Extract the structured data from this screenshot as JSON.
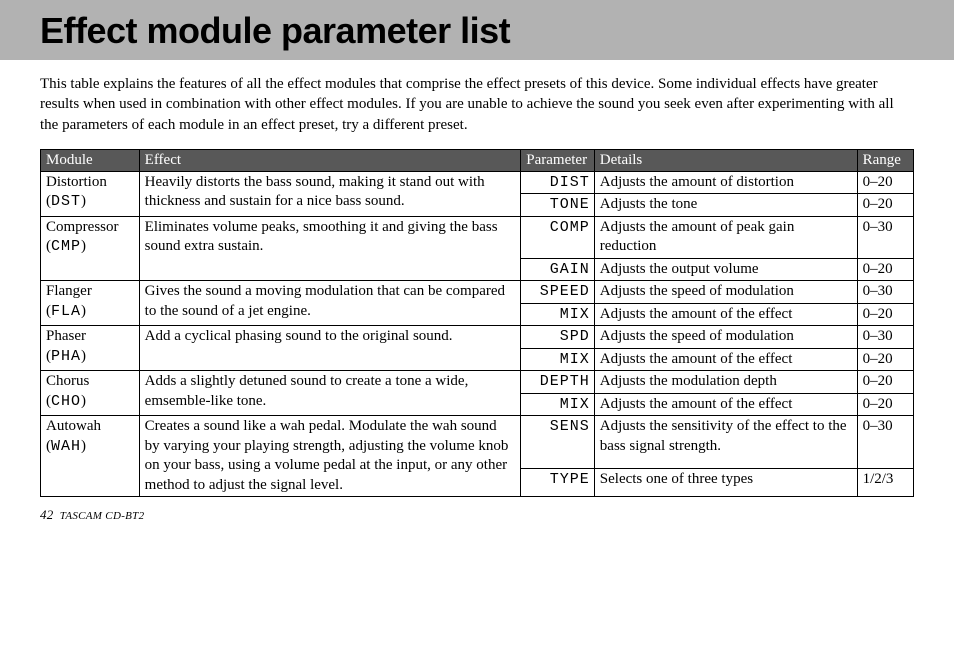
{
  "title": "Effect module parameter list",
  "intro": "This table explains the features of all the effect modules that comprise the effect presets of this device. Some individual effects have greater results when used in combination with other effect modules. If you are unable to achieve the sound you seek even after experimenting with all the parameters of each module in an effect preset, try a different preset.",
  "headers": {
    "module": "Module",
    "effect": "Effect",
    "parameter": "Parameter",
    "details": "Details",
    "range": "Range"
  },
  "rows": [
    {
      "module_name": "Distortion",
      "module_code": "DST",
      "effect": "Heavily distorts the bass sound, making it stand out with thickness and sustain for a nice bass sound.",
      "params": [
        {
          "p": "DIST",
          "d": "Adjusts the amount of distortion",
          "r": "0–20"
        },
        {
          "p": "TONE",
          "d": "Adjusts the tone",
          "r": "0–20"
        }
      ]
    },
    {
      "module_name": "Compressor",
      "module_code": "CMP",
      "effect": "Eliminates volume peaks, smoothing it and giving the bass sound extra sustain.",
      "params": [
        {
          "p": "COMP",
          "d": "Adjusts the amount of peak gain reduction",
          "r": "0–30"
        },
        {
          "p": "GAIN",
          "d": "Adjusts the output volume",
          "r": "0–20"
        }
      ]
    },
    {
      "module_name": "Flanger",
      "module_code": "FLA",
      "effect": "Gives the sound a moving modulation that can be compared to the sound of a jet engine.",
      "params": [
        {
          "p": "SPEED",
          "d": "Adjusts the speed of modulation",
          "r": "0–30"
        },
        {
          "p": "MIX",
          "d": "Adjusts the amount of the effect",
          "r": "0–20"
        }
      ]
    },
    {
      "module_name": "Phaser",
      "module_code": "PHA",
      "effect": "Add a cyclical phasing sound to the original sound.",
      "params": [
        {
          "p": "SPD",
          "d": "Adjusts the speed of modulation",
          "r": "0–30"
        },
        {
          "p": "MIX",
          "d": "Adjusts the amount of the effect",
          "r": "0–20"
        }
      ]
    },
    {
      "module_name": "Chorus",
      "module_code": "CHO",
      "effect": "Adds a slightly detuned sound to create a tone a wide, emsemble-like tone.",
      "params": [
        {
          "p": "DEPTH",
          "d": "Adjusts the modulation depth",
          "r": "0–20"
        },
        {
          "p": "MIX",
          "d": "Adjusts the amount of the effect",
          "r": "0–20"
        }
      ]
    },
    {
      "module_name": "Autowah",
      "module_code": "WAH",
      "effect": "Creates a sound like a wah pedal. Modulate the wah sound by varying your playing strength, adjusting the volume knob on your bass, using a volume pedal at the input, or any other method to adjust the signal level.",
      "params": [
        {
          "p": "SENS",
          "d": "Adjusts the sensitivity of the effect to the bass signal strength.",
          "r": "0–30"
        },
        {
          "p": "TYPE",
          "d": "Selects one of three types",
          "r": "1/2/3"
        }
      ]
    }
  ],
  "footer": {
    "page": "42",
    "product": "TASCAM  CD-BT2"
  }
}
